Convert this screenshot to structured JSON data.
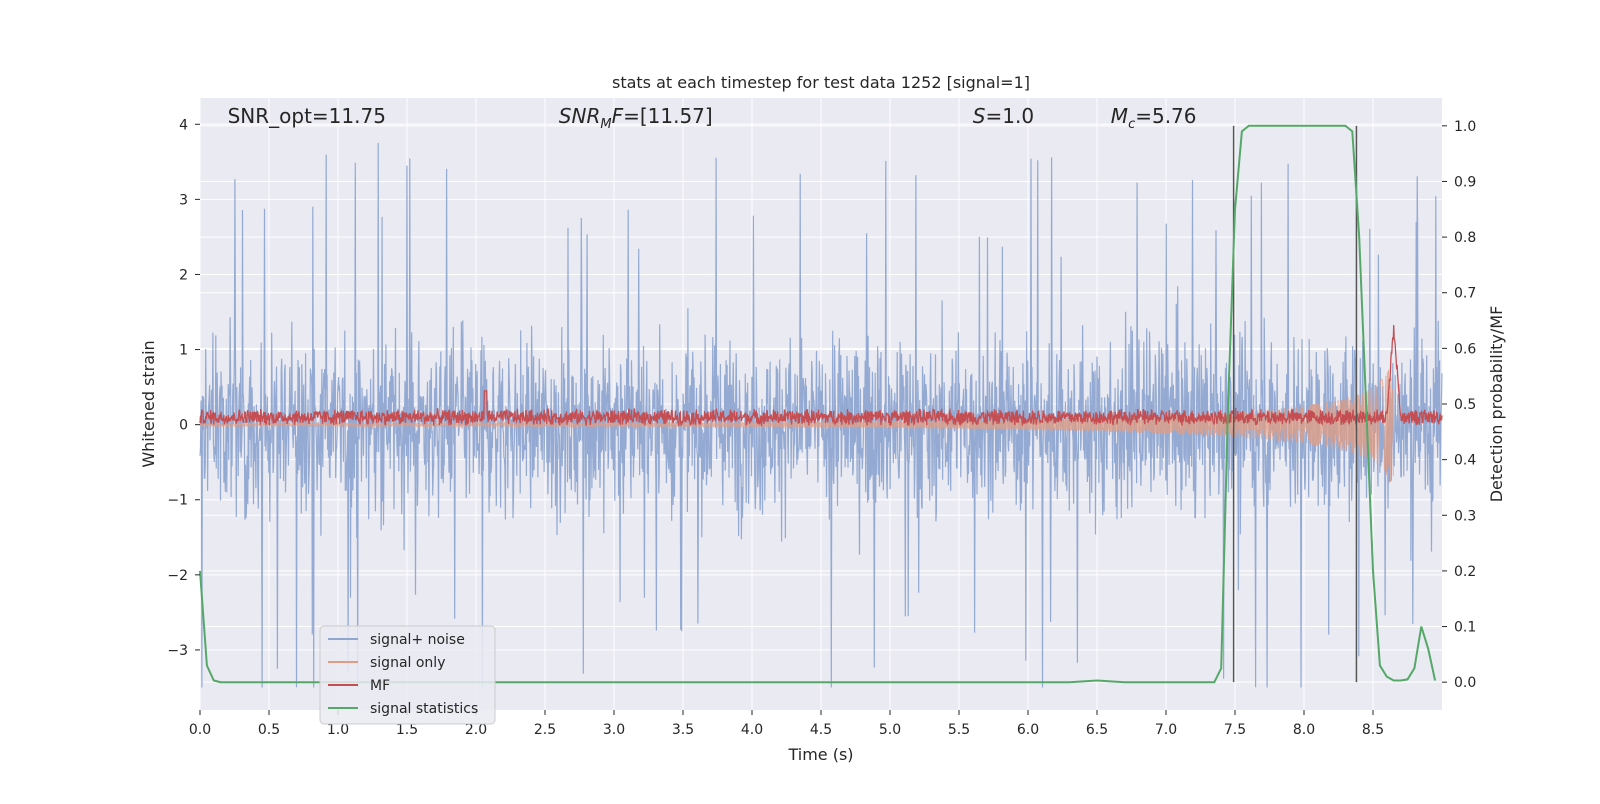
{
  "chart_data": {
    "type": "line",
    "title": "stats at each timestep for test data 1252 [signal=1]",
    "xlabel": "Time (s)",
    "ylabel_left": "Whitened strain",
    "ylabel_right": "Detection probability/MF",
    "xlim": [
      0.0,
      9.0
    ],
    "ylim_left": [
      -3.8,
      4.35
    ],
    "ylim_right": [
      -0.05,
      1.05
    ],
    "x_ticks": [
      "0.0",
      "0.5",
      "1.0",
      "1.5",
      "2.0",
      "2.5",
      "3.0",
      "3.5",
      "4.0",
      "4.5",
      "5.0",
      "5.5",
      "6.0",
      "6.5",
      "7.0",
      "7.5",
      "8.0",
      "8.5"
    ],
    "y_left_ticks": [
      "4",
      "3",
      "2",
      "1",
      "0",
      "−1",
      "−2",
      "−3"
    ],
    "y_right_ticks": [
      "1.0",
      "0.9",
      "0.8",
      "0.7",
      "0.6",
      "0.5",
      "0.4",
      "0.3",
      "0.2",
      "0.1",
      "0.0"
    ],
    "grid": true,
    "legend_position": "lower-left",
    "annotations": [
      {
        "text": "SNR_opt=11.75",
        "x": 0.2,
        "y": 4.1
      },
      {
        "text": "SNR",
        "x": 2.6,
        "y": 4.1,
        "math": true,
        "sub": "M",
        "rest": "F=[11.57]"
      },
      {
        "text": "S",
        "x": 5.6,
        "y": 4.1,
        "math": true,
        "sub": "",
        "rest": "=1.0"
      },
      {
        "text": "M",
        "x": 6.6,
        "y": 4.1,
        "math": true,
        "sub": "c",
        "rest": "=5.76"
      }
    ],
    "vertical_lines_x": [
      7.49,
      8.38
    ],
    "series": [
      {
        "name": "signal+ noise",
        "axis": "left",
        "color": "#8fa6d0",
        "sample_rate": 2048,
        "envelope_typical": [
          -1.6,
          1.7
        ],
        "envelope_extreme": [
          -3.5,
          4.0
        ]
      },
      {
        "name": "signal only",
        "axis": "left",
        "color": "#e39c82",
        "chirp_start_amp": 0.02,
        "chirp_peak_amp": 1.3,
        "chirp_peak_time": 8.65
      },
      {
        "name": "MF",
        "axis": "left",
        "color": "#c44e52",
        "baseline": 0.1,
        "noise_amp": 0.1,
        "peak": {
          "x": 8.65,
          "y": 1.3
        }
      },
      {
        "name": "signal statistics",
        "axis": "right",
        "color": "#55a868",
        "x": [
          0.0,
          0.05,
          0.1,
          0.15,
          0.2,
          6.0,
          6.3,
          6.5,
          6.7,
          7.0,
          7.35,
          7.4,
          7.45,
          7.5,
          7.55,
          7.6,
          8.0,
          8.3,
          8.35,
          8.4,
          8.5,
          8.55,
          8.6,
          8.65,
          8.7,
          8.75,
          8.8,
          8.85,
          8.9,
          8.95
        ],
        "y": [
          0.2,
          0.03,
          0.003,
          0.0,
          0.0,
          0.0,
          0.0,
          0.003,
          0.0,
          0.0,
          0.0,
          0.025,
          0.5,
          0.85,
          0.99,
          1.0,
          1.0,
          1.0,
          0.99,
          0.8,
          0.2,
          0.03,
          0.01,
          0.003,
          0.003,
          0.005,
          0.025,
          0.1,
          0.06,
          0.003
        ]
      }
    ]
  }
}
